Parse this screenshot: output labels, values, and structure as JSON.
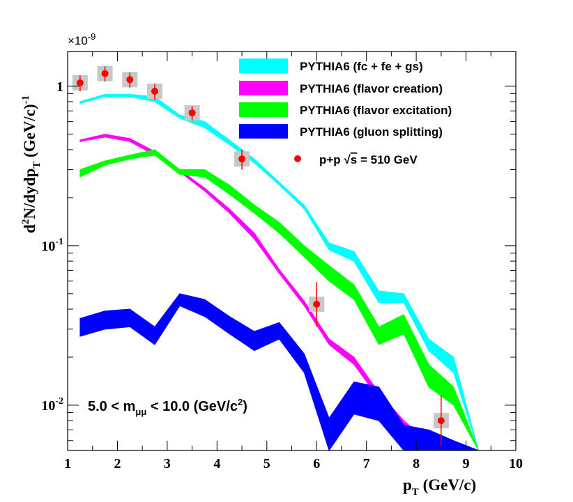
{
  "chart_data": {
    "type": "line",
    "title": "",
    "xlabel": "p_T (GeV/c)",
    "ylabel": "d^2N/dydp_T (GeV/c)^-1",
    "y_scale": "log",
    "xlim": [
      1,
      10
    ],
    "ylim": [
      0.0052,
      1.65
    ],
    "exponent_label": "×10",
    "exponent_power": "-9",
    "x_tick_labels": [
      "1",
      "2",
      "3",
      "4",
      "5",
      "6",
      "7",
      "8",
      "9",
      "10"
    ],
    "y_tick_labels": [
      {
        "value": 1,
        "base": "1",
        "exp": ""
      },
      {
        "value": 0.1,
        "base": "10",
        "exp": "-1"
      },
      {
        "value": 0.01,
        "base": "10",
        "exp": "-2"
      }
    ],
    "axis_titles": {
      "x_main": "p",
      "x_sub": "T",
      "x_rest": " (GeV/c)",
      "y_p1": "d",
      "y_sup1": "2",
      "y_p2": "N/dydp",
      "y_sub": "T",
      "y_p3": " (GeV/c)",
      "y_sup2": "-1"
    },
    "annotation": {
      "prefix": "5.0 < m",
      "sub": "μμ",
      "mid": " < 10.0 (GeV/c",
      "sup": "2",
      "suffix": ")"
    },
    "x": [
      1.25,
      1.75,
      2.25,
      2.75,
      3.25,
      3.75,
      4.25,
      4.75,
      5.25,
      5.75,
      6.25,
      6.75,
      7.25,
      7.75,
      8.25,
      8.75,
      9.25
    ],
    "series": [
      {
        "name": "PYTHIA6 (fc + fe + gs)",
        "color": "#00ffff",
        "kind": "band",
        "low": [
          0.78,
          0.86,
          0.86,
          0.8,
          0.63,
          0.55,
          0.43,
          0.33,
          0.24,
          0.17,
          0.094,
          0.08,
          0.044,
          0.044,
          0.022,
          0.016,
          0.0052
        ],
        "high": [
          0.8,
          0.89,
          0.89,
          0.86,
          0.66,
          0.6,
          0.46,
          0.35,
          0.25,
          0.18,
          0.104,
          0.092,
          0.052,
          0.05,
          0.026,
          0.02,
          0.0052
        ]
      },
      {
        "name": "PYTHIA6 (flavor creation)",
        "color": "#ff00ff",
        "kind": "band",
        "low": [
          0.45,
          0.48,
          0.45,
          0.37,
          0.29,
          0.22,
          0.16,
          0.11,
          0.067,
          0.042,
          0.024,
          0.018,
          0.011,
          0.0075,
          0.0055,
          0.0052,
          0.0052
        ],
        "high": [
          0.46,
          0.5,
          0.47,
          0.39,
          0.3,
          0.23,
          0.17,
          0.12,
          0.071,
          0.045,
          0.026,
          0.02,
          0.012,
          0.008,
          0.0058,
          0.0052,
          0.0052
        ]
      },
      {
        "name": "PYTHIA6 (flavor excitation)",
        "color": "#00ff00",
        "kind": "band",
        "low": [
          0.27,
          0.32,
          0.35,
          0.37,
          0.28,
          0.27,
          0.21,
          0.16,
          0.12,
          0.085,
          0.06,
          0.046,
          0.024,
          0.028,
          0.013,
          0.01,
          0.0052
        ],
        "high": [
          0.3,
          0.34,
          0.37,
          0.4,
          0.3,
          0.3,
          0.24,
          0.18,
          0.14,
          0.1,
          0.075,
          0.057,
          0.031,
          0.037,
          0.018,
          0.013,
          0.0052
        ]
      },
      {
        "name": "PYTHIA6 (gluon splitting)",
        "color": "#0000ff",
        "kind": "band",
        "low": [
          0.027,
          0.03,
          0.031,
          0.024,
          0.042,
          0.036,
          0.028,
          0.022,
          0.026,
          0.016,
          0.0052,
          0.0088,
          0.008,
          0.0052,
          0.0052,
          0.0052,
          0.0052
        ],
        "high": [
          0.035,
          0.039,
          0.04,
          0.031,
          0.05,
          0.046,
          0.036,
          0.029,
          0.033,
          0.021,
          0.0083,
          0.014,
          0.013,
          0.0075,
          0.007,
          0.006,
          0.0052
        ]
      },
      {
        "name": "p+p",
        "sqrt_label": "s",
        "energy_label": " = 510 GeV",
        "color": "#ff0000",
        "kind": "points",
        "x": [
          1.25,
          1.75,
          2.25,
          2.75,
          3.5,
          4.5,
          6.0,
          8.5
        ],
        "y": [
          1.05,
          1.2,
          1.1,
          0.93,
          0.68,
          0.35,
          0.043,
          0.008
        ],
        "err_lo": [
          0.12,
          0.13,
          0.12,
          0.11,
          0.07,
          0.05,
          0.012,
          0.0027
        ],
        "err_hi": [
          0.12,
          0.13,
          0.12,
          0.11,
          0.07,
          0.05,
          0.016,
          0.0035
        ]
      }
    ]
  }
}
